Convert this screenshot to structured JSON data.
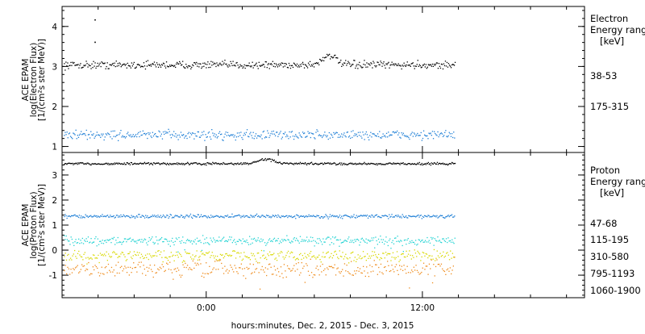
{
  "x_axis": {
    "label": "hours:minutes, Dec.  2, 2015 - Dec.  3, 2015",
    "ticks": [
      {
        "hour": 0,
        "label": "0:00"
      },
      {
        "hour": 12,
        "label": "12:00"
      }
    ],
    "xlim_hours": [
      -8,
      21
    ]
  },
  "chart_data": [
    {
      "type": "scatter",
      "panel": "electron",
      "ylabel": [
        "ACE EPAM",
        "log(Electron Flux)",
        "[1/(cm²s ster MeV)]"
      ],
      "ylim": [
        0.85,
        4.5
      ],
      "yticks": [
        1,
        2,
        3,
        4
      ],
      "data_end_hour": 13.8,
      "legend_title": [
        "Electron",
        "Energy ranges",
        "[keV]"
      ],
      "series": [
        {
          "name": "38-53",
          "color": "#000000",
          "level": 3.05,
          "spread": 0.08,
          "bump": {
            "hour": 6.8,
            "amplitude": 0.25,
            "width": 0.5
          },
          "outliers": [
            {
              "x": -6.2,
              "y": 4.18
            },
            {
              "x": -6.2,
              "y": 3.62
            }
          ]
        },
        {
          "name": "175-315",
          "color": "#1e7fd6",
          "level": 1.3,
          "spread": 0.1
        }
      ]
    },
    {
      "type": "scatter",
      "panel": "proton",
      "ylabel": [
        "ACE EPAM",
        "log(Proton Flux)",
        "[1/(cm²s ster MeV)]"
      ],
      "ylim": [
        -1.9,
        3.9
      ],
      "yticks": [
        -1,
        0,
        1,
        2,
        3
      ],
      "data_end_hour": 13.8,
      "legend_title": [
        "Proton",
        "Energy ranges",
        "[keV]"
      ],
      "series": [
        {
          "name": "47-68",
          "color": "#000000",
          "level": 3.47,
          "spread": 0.04,
          "bump": {
            "hour": 3.3,
            "amplitude": 0.18,
            "width": 0.6
          }
        },
        {
          "name": "115-195",
          "color": "#1e7fd6",
          "level": 1.37,
          "spread": 0.06
        },
        {
          "name": "310-580",
          "color": "#22d3d3",
          "level": 0.4,
          "spread": 0.14
        },
        {
          "name": "795-1193",
          "color": "#d8d800",
          "level": -0.2,
          "spread": 0.18
        },
        {
          "name": "1060-1900",
          "color": "#ee8a1a",
          "level": -0.75,
          "spread": 0.3
        }
      ]
    }
  ]
}
